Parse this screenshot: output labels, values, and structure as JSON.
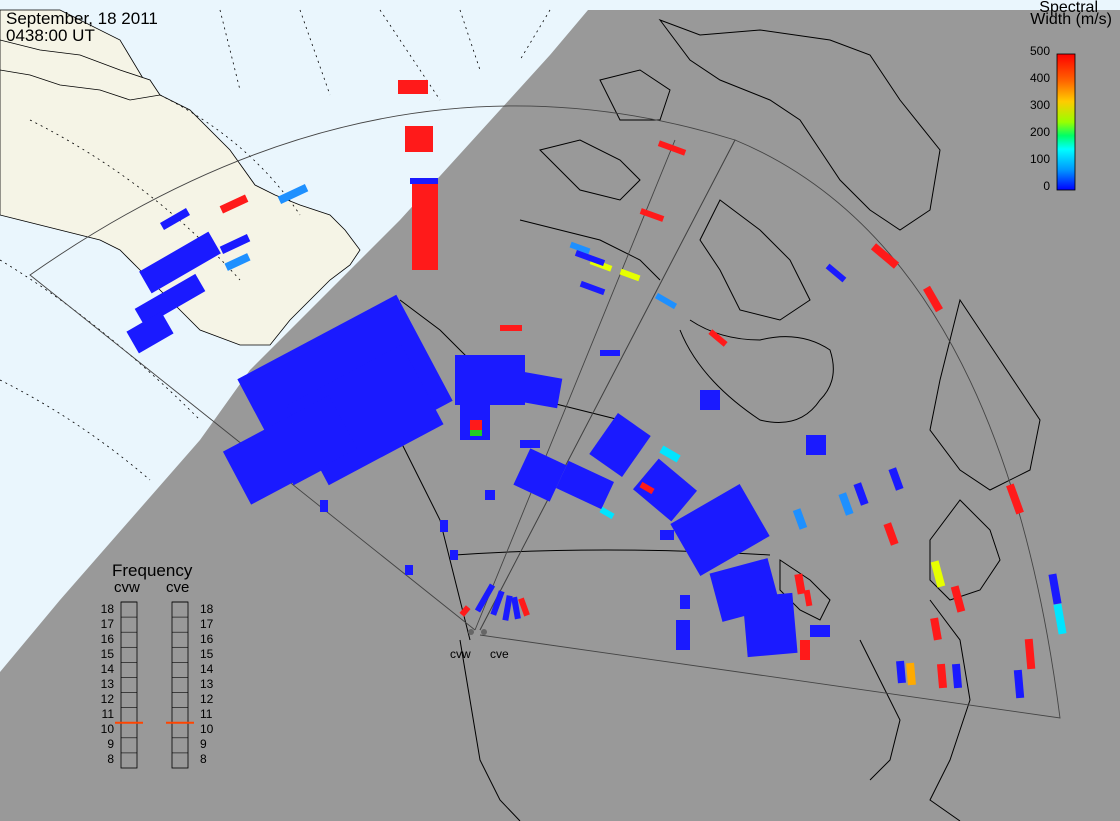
{
  "header": {
    "date": "September, 18 2011",
    "time": "0438:00 UT"
  },
  "colorbar": {
    "title_line1": "Spectral",
    "title_line2": "Width (m/s)",
    "ticks": [
      "500",
      "400",
      "300",
      "200",
      "100",
      "0"
    ],
    "stops": [
      "#ff0000",
      "#ff6600",
      "#ffcc00",
      "#99ff00",
      "#00ff66",
      "#00ffff",
      "#0099ff",
      "#0000ff"
    ]
  },
  "frequency_panel": {
    "title": "Frequency",
    "radars": [
      {
        "name": "cvw",
        "value_mhz": 10.5
      },
      {
        "name": "cve",
        "value_mhz": 10.5
      }
    ],
    "ticks": [
      "18",
      "17",
      "16",
      "15",
      "14",
      "13",
      "12",
      "11",
      "10",
      "9",
      "8"
    ],
    "marker_color": "#ff4400"
  },
  "radar_sites": [
    {
      "name": "cvw"
    },
    {
      "name": "cve"
    }
  ],
  "colors": {
    "night": "#999999",
    "day_ocean": "#eaf6fd",
    "day_land": "#f5f4e6",
    "coast": "#000000",
    "fov": "#444444"
  }
}
